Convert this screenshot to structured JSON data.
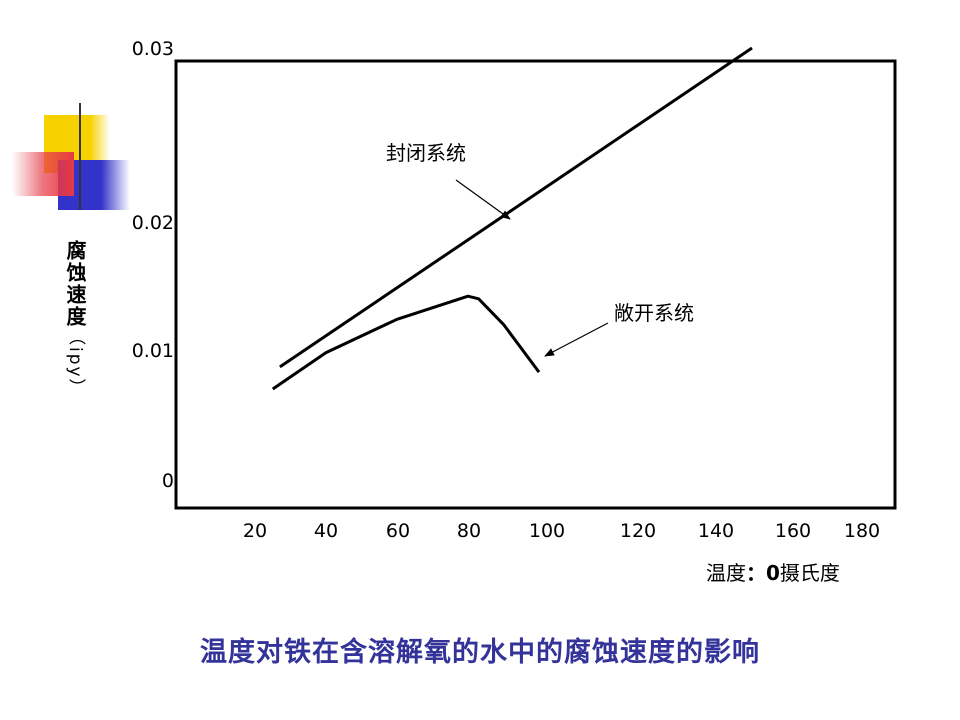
{
  "chart_data": {
    "type": "line",
    "ylabel": "腐蚀速度",
    "ylabel_unit": "（ipy）",
    "xlabel_prefix": "温度",
    "xlabel_mid": "：0",
    "xlabel_suffix": "摄氏度",
    "x_ticks": [
      "20",
      "40",
      "60",
      "80",
      "100",
      "120",
      "140",
      "160",
      "180"
    ],
    "y_ticks": [
      "0",
      "0.01",
      "0.02",
      "0.03"
    ],
    "ylim": [
      0,
      0.03
    ],
    "grid": false,
    "series": [
      {
        "name": "封闭系统",
        "x": [
          27,
          160
        ],
        "y": [
          0.0087,
          0.03
        ]
      },
      {
        "name": "敞开系统",
        "x": [
          25,
          40,
          60,
          80,
          83,
          90,
          100
        ],
        "y": [
          0.007,
          0.0098,
          0.0124,
          0.0142,
          0.014,
          0.012,
          0.0083
        ]
      }
    ],
    "annotations": [
      {
        "text": "封闭系统",
        "series": 0
      },
      {
        "text": "敞开系统",
        "series": 1
      }
    ]
  },
  "caption": "温度对铁在含溶解氧的水中的腐蚀速度的影响",
  "colors": {
    "line": "#000000",
    "caption": "#33339a",
    "deco_yellow": "#f8d200",
    "deco_red": "#e63946",
    "deco_blue": "#3333cc"
  }
}
